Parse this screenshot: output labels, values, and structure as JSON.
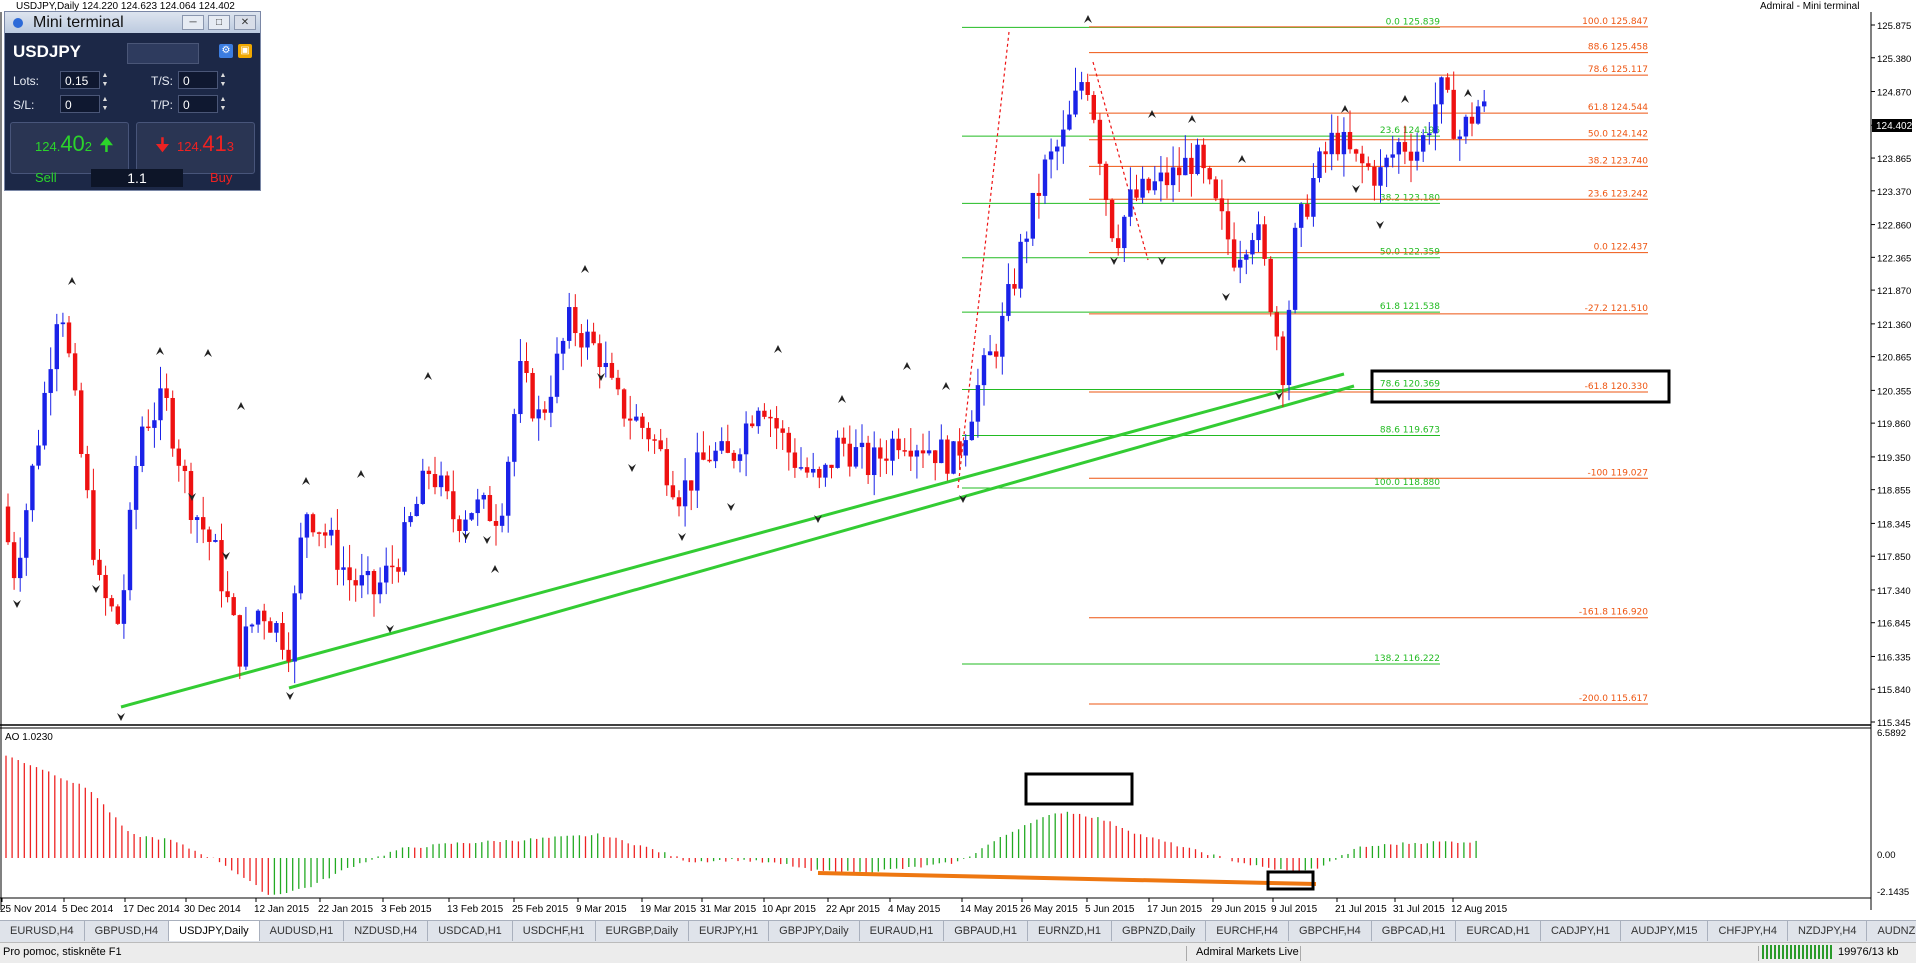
{
  "window": {
    "symbol_info": "USDJPY,Daily  124.220 124.623 124.064 124.402",
    "right_label": "Admiral - Mini terminal"
  },
  "colors": {
    "bull": "#1a22e8",
    "bear": "#ee1111",
    "fib_green": "#22bb22",
    "fib_orange": "#ee5511",
    "trend": "#33cc33",
    "ao_divergence": "#ee7711"
  },
  "mini_terminal": {
    "title": "Mini terminal",
    "symbol": "USDJPY",
    "lots_label": "Lots:",
    "lots_value": "0.15",
    "ts_label": "T/S:",
    "ts_value": "0",
    "sl_label": "S/L:",
    "sl_value": "0",
    "tp_label": "T/P:",
    "tp_value": "0",
    "sell_price_main": "124.",
    "sell_price_big": "40",
    "sell_price_small": "2",
    "buy_price_main": "124.",
    "buy_price_big": "41",
    "buy_price_small": "3",
    "sell_label": "Sell",
    "buy_label": "Buy",
    "volume": "1.1"
  },
  "price_axis": {
    "ticks": [
      "125.875",
      "125.380",
      "124.870",
      "124.360",
      "123.865",
      "123.370",
      "122.860",
      "122.365",
      "121.870",
      "121.360",
      "120.865",
      "120.355",
      "119.860",
      "119.350",
      "118.855",
      "118.345",
      "117.850",
      "117.340",
      "116.845",
      "116.335",
      "115.840",
      "115.345"
    ],
    "current": "124.402"
  },
  "ao": {
    "label": "AO 1.0230",
    "ticks": [
      "6.5892",
      "0.00",
      "-2.1435"
    ]
  },
  "time_axis": [
    "25 Nov 2014",
    "5 Dec 2014",
    "17 Dec 2014",
    "30 Dec 2014",
    "12 Jan 2015",
    "22 Jan 2015",
    "3 Feb 2015",
    "13 Feb 2015",
    "25 Feb 2015",
    "9 Mar 2015",
    "19 Mar 2015",
    "31 Mar 2015",
    "10 Apr 2015",
    "22 Apr 2015",
    "4 May 2015",
    "14 May 2015",
    "26 May 2015",
    "5 Jun 2015",
    "17 Jun 2015",
    "29 Jun 2015",
    "9 Jul 2015",
    "21 Jul 2015",
    "31 Jul 2015",
    "12 Aug 2015"
  ],
  "fib_green": [
    "0.0 125.839",
    "23.6 124.196",
    "38.2 123.180",
    "50.0 122.359",
    "61.8 121.538",
    "78.6 120.369",
    "88.6 119.673",
    "100.0 118.880",
    "138.2 116.222"
  ],
  "fib_orange": [
    "100.0 125.847",
    "88.6 125.458",
    "78.6 125.117",
    "61.8 124.544",
    "50.0 124.142",
    "38.2 123.740",
    "23.6 123.242",
    "0.0 122.437",
    "-27.2 121.510",
    "-61.8 120.330",
    "-100 119.027",
    "-161.8 116.920",
    "-200.0 115.617"
  ],
  "tabs": [
    "EURUSD,H4",
    "GBPUSD,H4",
    "USDJPY,Daily",
    "AUDUSD,H1",
    "NZDUSD,H4",
    "USDCAD,H1",
    "USDCHF,H1",
    "EURGBP,Daily",
    "EURJPY,H1",
    "GBPJPY,Daily",
    "EURAUD,H1",
    "GBPAUD,H1",
    "EURNZD,H1",
    "GBPNZD,Daily",
    "EURCHF,H4",
    "GBPCHF,H4",
    "GBPCAD,H1",
    "EURCAD,H1",
    "CADJPY,H1",
    "AUDJPY,M15",
    "CHFJPY,H4",
    "NZDJPY,H4",
    "AUDNZD,H4",
    "AU"
  ],
  "active_tab": "USDJPY,Daily",
  "status": {
    "help": "Pro pomoc, stiskněte F1",
    "profile": "Admiral Markets Live",
    "traffic": "19976/13 kb"
  }
}
